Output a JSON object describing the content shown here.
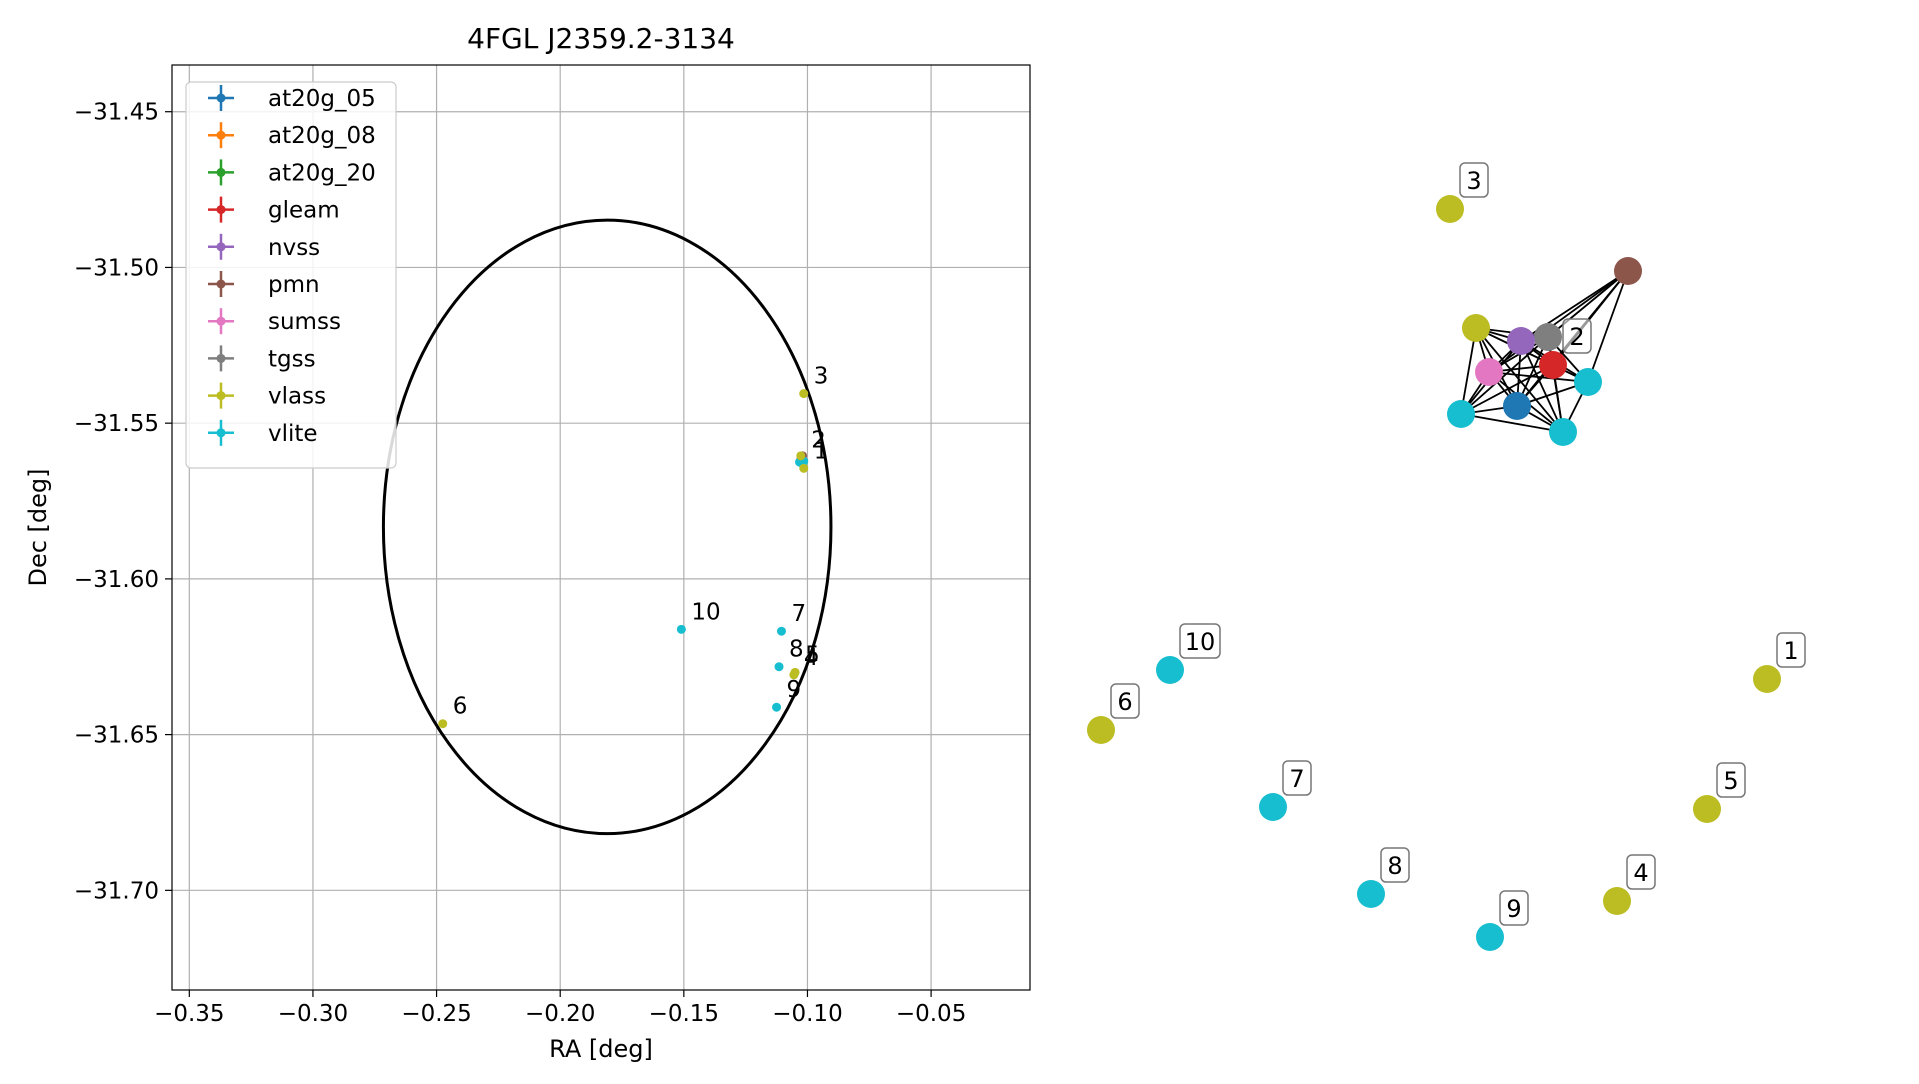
{
  "chart_data": [
    {
      "type": "scatter",
      "title": "4FGL J2359.2-3134",
      "xlabel": "RA [deg]",
      "ylabel": "Dec [deg]",
      "xlim": [
        -0.357,
        -0.01
      ],
      "ylim": [
        -31.732,
        -31.435
      ],
      "xticks": [
        -0.35,
        -0.3,
        -0.25,
        -0.2,
        -0.15,
        -0.1,
        -0.05
      ],
      "xtick_labels": [
        "−0.35",
        "−0.30",
        "−0.25",
        "−0.20",
        "−0.15",
        "−0.10",
        "−0.05"
      ],
      "yticks": [
        -31.45,
        -31.5,
        -31.55,
        -31.6,
        -31.65,
        -31.7
      ],
      "ytick_labels": [
        "−31.45",
        "−31.50",
        "−31.55",
        "−31.60",
        "−31.65",
        "−31.70"
      ],
      "grid": true,
      "legend_position": "top-left",
      "series": [
        {
          "name": "at20g_05",
          "color": "#1f77b4"
        },
        {
          "name": "at20g_08",
          "color": "#ff7f0e"
        },
        {
          "name": "at20g_20",
          "color": "#2ca02c"
        },
        {
          "name": "gleam",
          "color": "#d62728"
        },
        {
          "name": "nvss",
          "color": "#9467bd"
        },
        {
          "name": "pmn",
          "color": "#8c564b"
        },
        {
          "name": "sumss",
          "color": "#e377c2"
        },
        {
          "name": "tgss",
          "color": "#7f7f7f"
        },
        {
          "name": "vlass",
          "color": "#bcbd22"
        },
        {
          "name": "vlite",
          "color": "#17becf"
        }
      ],
      "ellipse": {
        "center": [
          -0.181,
          -31.5833
        ],
        "ra_semi_axis": 0.0905,
        "dec_semi_axis": 0.0985,
        "color": "#000000"
      },
      "points": [
        {
          "series": "pmn",
          "x": -0.102,
          "y": -31.5605
        },
        {
          "series": "tgss",
          "x": -0.1025,
          "y": -31.561
        },
        {
          "series": "nvss",
          "x": -0.1025,
          "y": -31.5615
        },
        {
          "series": "gleam",
          "x": -0.102,
          "y": -31.5618
        },
        {
          "series": "sumss",
          "x": -0.1028,
          "y": -31.5618
        },
        {
          "series": "at20g_05",
          "x": -0.1025,
          "y": -31.5622
        },
        {
          "series": "vlite",
          "x": -0.1032,
          "y": -31.5625
        },
        {
          "series": "vlite",
          "x": -0.1015,
          "y": -31.5622
        },
        {
          "series": "vlite",
          "x": -0.102,
          "y": -31.563
        },
        {
          "series": "vlass",
          "x": -0.1027,
          "y": -31.5605
        },
        {
          "series": "vlass",
          "x": -0.1015,
          "y": -31.5645,
          "label": "1"
        },
        {
          "series": "vlass",
          "x": -0.1015,
          "y": -31.5405,
          "label": "3"
        },
        {
          "series": "vlass",
          "x": -0.1055,
          "y": -31.6308,
          "label": "4"
        },
        {
          "series": "vlass",
          "x": -0.105,
          "y": -31.63,
          "label": "5"
        },
        {
          "series": "vlass",
          "x": -0.2475,
          "y": -31.6465,
          "label": "6"
        },
        {
          "series": "vlite",
          "x": -0.1105,
          "y": -31.6168,
          "label": "7"
        },
        {
          "series": "vlite",
          "x": -0.1115,
          "y": -31.6282,
          "label": "8"
        },
        {
          "series": "vlite",
          "x": -0.1125,
          "y": -31.6412,
          "label": "9"
        },
        {
          "series": "vlite",
          "x": -0.151,
          "y": -31.6162,
          "label": "10"
        }
      ],
      "point_labels": [
        {
          "text": "2",
          "x": -0.1025,
          "y": -31.561
        },
        {
          "text": "1",
          "x": -0.1015,
          "y": -31.5645
        },
        {
          "text": "3",
          "x": -0.1015,
          "y": -31.5405
        },
        {
          "text": "5",
          "x": -0.105,
          "y": -31.63
        },
        {
          "text": "4",
          "x": -0.1055,
          "y": -31.6308
        },
        {
          "text": "6",
          "x": -0.2475,
          "y": -31.6465
        },
        {
          "text": "7",
          "x": -0.1105,
          "y": -31.6168
        },
        {
          "text": "8",
          "x": -0.1115,
          "y": -31.6282
        },
        {
          "text": "9",
          "x": -0.1125,
          "y": -31.6412
        },
        {
          "text": "10",
          "x": -0.151,
          "y": -31.6162
        }
      ]
    },
    {
      "type": "graph",
      "nodes": [
        {
          "id": "pmn",
          "color": "#8c564b"
        },
        {
          "id": "vlass_a",
          "color": "#bcbd22"
        },
        {
          "id": "nvss",
          "color": "#9467bd"
        },
        {
          "id": "tgss",
          "color": "#7f7f7f"
        },
        {
          "id": "gleam",
          "color": "#d62728",
          "label": "2"
        },
        {
          "id": "sumss",
          "color": "#e377c2"
        },
        {
          "id": "vlite_a",
          "color": "#17becf"
        },
        {
          "id": "vlite_b",
          "color": "#17becf"
        },
        {
          "id": "at20g",
          "color": "#1f77b4"
        },
        {
          "id": "vlite_c",
          "color": "#17becf"
        },
        {
          "id": "n3",
          "color": "#bcbd22",
          "label": "3"
        },
        {
          "id": "n1",
          "color": "#bcbd22",
          "label": "1"
        },
        {
          "id": "n5",
          "color": "#bcbd22",
          "label": "5"
        },
        {
          "id": "n4",
          "color": "#bcbd22",
          "label": "4"
        },
        {
          "id": "n6",
          "color": "#bcbd22",
          "label": "6"
        },
        {
          "id": "n10",
          "color": "#17becf",
          "label": "10"
        },
        {
          "id": "n7",
          "color": "#17becf",
          "label": "7"
        },
        {
          "id": "n8",
          "color": "#17becf",
          "label": "8"
        },
        {
          "id": "n9",
          "color": "#17becf",
          "label": "9"
        }
      ],
      "edges": [
        [
          "pmn",
          "nvss"
        ],
        [
          "pmn",
          "tgss"
        ],
        [
          "pmn",
          "gleam"
        ],
        [
          "pmn",
          "sumss"
        ],
        [
          "pmn",
          "at20g"
        ],
        [
          "pmn",
          "vlite_a"
        ],
        [
          "vlass_a",
          "nvss"
        ],
        [
          "vlass_a",
          "tgss"
        ],
        [
          "vlass_a",
          "gleam"
        ],
        [
          "vlass_a",
          "sumss"
        ],
        [
          "vlass_a",
          "at20g"
        ],
        [
          "vlass_a",
          "vlite_a"
        ],
        [
          "vlass_a",
          "vlite_b"
        ],
        [
          "vlass_a",
          "vlite_c"
        ],
        [
          "nvss",
          "tgss"
        ],
        [
          "nvss",
          "gleam"
        ],
        [
          "nvss",
          "sumss"
        ],
        [
          "nvss",
          "at20g"
        ],
        [
          "nvss",
          "vlite_a"
        ],
        [
          "nvss",
          "vlite_b"
        ],
        [
          "nvss",
          "vlite_c"
        ],
        [
          "tgss",
          "gleam"
        ],
        [
          "tgss",
          "sumss"
        ],
        [
          "tgss",
          "at20g"
        ],
        [
          "tgss",
          "vlite_a"
        ],
        [
          "tgss",
          "vlite_b"
        ],
        [
          "tgss",
          "vlite_c"
        ],
        [
          "gleam",
          "sumss"
        ],
        [
          "gleam",
          "at20g"
        ],
        [
          "gleam",
          "vlite_a"
        ],
        [
          "gleam",
          "vlite_b"
        ],
        [
          "gleam",
          "vlite_c"
        ],
        [
          "sumss",
          "at20g"
        ],
        [
          "sumss",
          "vlite_a"
        ],
        [
          "sumss",
          "vlite_b"
        ],
        [
          "sumss",
          "vlite_c"
        ],
        [
          "at20g",
          "vlite_a"
        ],
        [
          "at20g",
          "vlite_b"
        ],
        [
          "at20g",
          "vlite_c"
        ],
        [
          "vlite_a",
          "vlite_c"
        ],
        [
          "vlite_b",
          "vlite_c"
        ]
      ]
    }
  ]
}
